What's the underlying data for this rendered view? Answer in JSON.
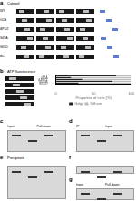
{
  "figure": {
    "panels": [
      {
        "label": "a",
        "title": "Cytosol",
        "rows": [
          "WT",
          "G2A",
          "ΔPDZ",
          "S65A",
          "S65D",
          "ΔC"
        ]
      },
      {
        "label": "b",
        "title": "ATP fluorescence"
      },
      {
        "label": "c",
        "lanes": [
          "Input",
          "Pull-down"
        ]
      },
      {
        "label": "d",
        "lanes": [
          "IP",
          "Input"
        ]
      },
      {
        "label": "e",
        "title": "Precipitate"
      },
      {
        "label": "f"
      },
      {
        "label": "g",
        "lanes": [
          "Input",
          "Pull-down"
        ]
      }
    ]
  },
  "chart_data": {
    "type": "bar",
    "orientation": "horizontal",
    "stacked": true,
    "categories": [
      "WT",
      "G2A",
      "ΔPDZ",
      "S65A",
      "S65D"
    ],
    "series": [
      {
        "name": "Golgi",
        "color": "#222222",
        "values": [
          80,
          20,
          35,
          75,
          30
        ]
      },
      {
        "name": "Diffuse",
        "color": "#bbbbbb",
        "values": [
          20,
          80,
          65,
          25,
          70
        ]
      }
    ],
    "xlabel": "Proportion of cells (%)",
    "xlim": [
      0,
      100
    ],
    "xticks": [
      0,
      50,
      100
    ],
    "legend": "bottom",
    "grid": false
  }
}
